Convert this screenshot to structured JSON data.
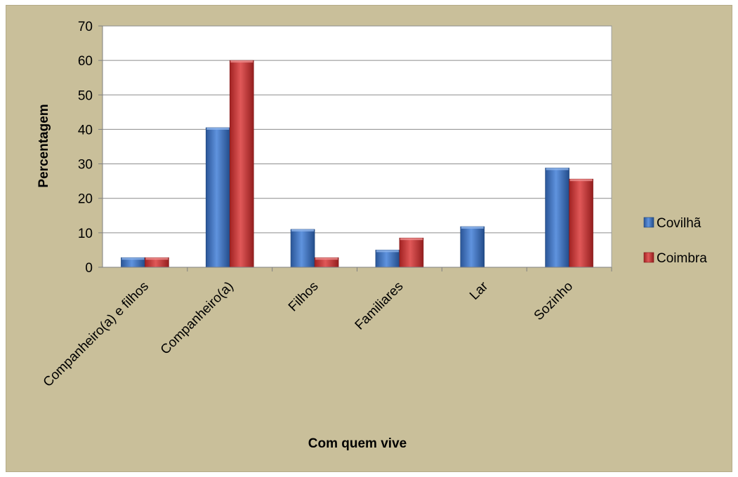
{
  "chart_data": {
    "type": "bar",
    "categories": [
      "Companheiro(a) e filhos",
      "Companheiro(a)",
      "Filhos",
      "Familiares",
      "Lar",
      "Sozinho"
    ],
    "series": [
      {
        "name": "Covilhã",
        "values": [
          2.8,
          40.5,
          11.0,
          5.0,
          11.8,
          28.8
        ],
        "color": "#3a72c4"
      },
      {
        "name": "Coimbra",
        "values": [
          2.8,
          60.0,
          2.8,
          8.5,
          0,
          25.6
        ],
        "color": "#c93535"
      }
    ],
    "xlabel": "Com quem vive",
    "ylabel": "Percentagem",
    "ylim": [
      0,
      70
    ],
    "yticks": [
      "0",
      "10",
      "20",
      "30",
      "40",
      "50",
      "60",
      "70"
    ],
    "grid": true,
    "legend_position": "right",
    "colors": {
      "background": "#c9bf9a",
      "plot_area": "#ffffff",
      "gridline": "#8c8c8c"
    }
  }
}
